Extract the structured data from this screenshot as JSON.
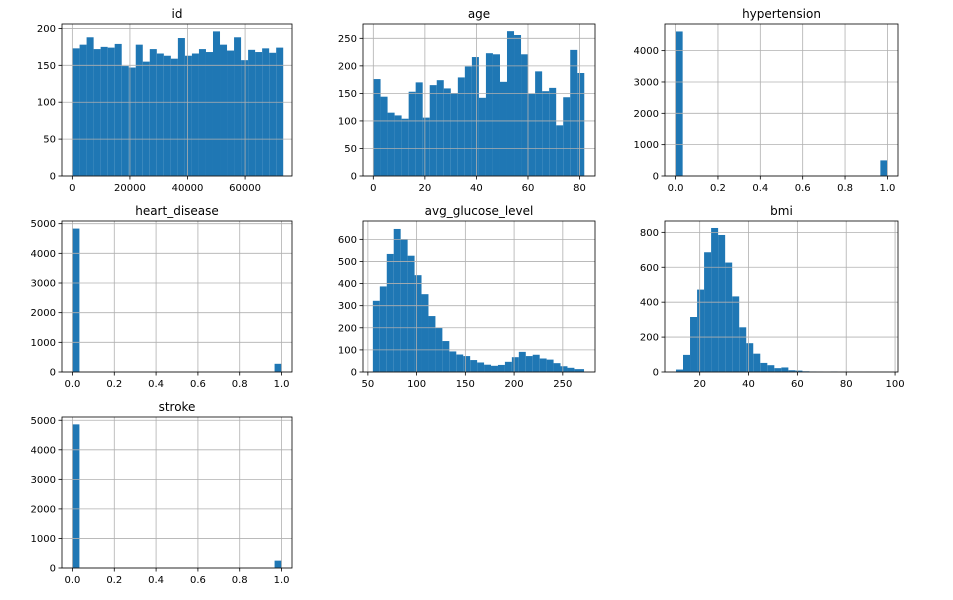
{
  "chart_data": [
    {
      "type": "bar",
      "title": "id",
      "xlim": [
        -3600,
        76300
      ],
      "ylim": [
        0,
        206
      ],
      "xticks": [
        0,
        20000,
        40000,
        60000
      ],
      "xtick_labels": [
        "0",
        "20000",
        "40000",
        "60000"
      ],
      "yticks": [
        0,
        50,
        100,
        150,
        200
      ],
      "ytick_labels": [
        "0",
        "50",
        "100",
        "150",
        "200"
      ],
      "grid": true,
      "color": "#1f77b4",
      "bin_edges": [
        67,
        2506,
        4946,
        7385,
        9824,
        12263,
        14703,
        17142,
        19581,
        22021,
        24460,
        26899,
        29338,
        31778,
        34217,
        36656,
        39095,
        41535,
        43974,
        46413,
        48853,
        51292,
        53731,
        56170,
        58610,
        61049,
        63488,
        65927,
        68367,
        70806,
        73245
      ],
      "values": [
        173,
        178,
        188,
        172,
        175,
        174,
        179,
        149,
        147,
        178,
        155,
        172,
        166,
        163,
        159,
        187,
        163,
        166,
        172,
        168,
        196,
        178,
        170,
        188,
        157,
        171,
        168,
        173,
        167,
        174
      ]
    },
    {
      "type": "bar",
      "title": "age",
      "xlim": [
        -4,
        86
      ],
      "ylim": [
        0,
        276
      ],
      "xticks": [
        0,
        20,
        40,
        60,
        80
      ],
      "xtick_labels": [
        "0",
        "20",
        "40",
        "60",
        "80"
      ],
      "yticks": [
        0,
        50,
        100,
        150,
        200,
        250
      ],
      "ytick_labels": [
        "0",
        "50",
        "100",
        "150",
        "200",
        "250"
      ],
      "grid": true,
      "color": "#1f77b4",
      "bin_edges": [
        0.08,
        2.81,
        5.53,
        8.26,
        10.98,
        13.71,
        16.43,
        19.16,
        21.88,
        24.61,
        27.33,
        30.06,
        32.79,
        35.51,
        38.24,
        40.96,
        43.69,
        46.41,
        49.14,
        51.86,
        54.59,
        57.31,
        60.04,
        62.77,
        65.49,
        68.22,
        70.94,
        73.67,
        76.39,
        79.12,
        81.84
      ],
      "values": [
        176,
        144,
        115,
        110,
        104,
        153,
        170,
        106,
        165,
        174,
        159,
        150,
        179,
        199,
        216,
        142,
        223,
        221,
        171,
        263,
        256,
        221,
        149,
        190,
        154,
        160,
        92,
        143,
        229,
        187
      ]
    },
    {
      "type": "bar",
      "title": "hypertension",
      "xlim": [
        -0.05,
        1.05
      ],
      "ylim": [
        0,
        4850
      ],
      "xticks": [
        0.0,
        0.2,
        0.4,
        0.6,
        0.8,
        1.0
      ],
      "xtick_labels": [
        "0.0",
        "0.2",
        "0.4",
        "0.6",
        "0.8",
        "1.0"
      ],
      "yticks": [
        0,
        1000,
        2000,
        3000,
        4000
      ],
      "ytick_labels": [
        "0",
        "1000",
        "2000",
        "3000",
        "4000"
      ],
      "grid": true,
      "color": "#1f77b4",
      "bin_edges": [
        0.0,
        0.0333,
        0.0667,
        0.1,
        0.1333,
        0.1667,
        0.2,
        0.2333,
        0.2667,
        0.3,
        0.3333,
        0.3667,
        0.4,
        0.4333,
        0.4667,
        0.5,
        0.5333,
        0.5667,
        0.6,
        0.6333,
        0.6667,
        0.7,
        0.7333,
        0.7667,
        0.8,
        0.8333,
        0.8667,
        0.9,
        0.9333,
        0.9667,
        1.0
      ],
      "values": [
        4612,
        0,
        0,
        0,
        0,
        0,
        0,
        0,
        0,
        0,
        0,
        0,
        0,
        0,
        0,
        0,
        0,
        0,
        0,
        0,
        0,
        0,
        0,
        0,
        0,
        0,
        0,
        0,
        0,
        498
      ]
    },
    {
      "type": "bar",
      "title": "heart_disease",
      "xlim": [
        -0.05,
        1.05
      ],
      "ylim": [
        0,
        5090
      ],
      "xticks": [
        0.0,
        0.2,
        0.4,
        0.6,
        0.8,
        1.0
      ],
      "xtick_labels": [
        "0.0",
        "0.2",
        "0.4",
        "0.6",
        "0.8",
        "1.0"
      ],
      "yticks": [
        0,
        1000,
        2000,
        3000,
        4000,
        5000
      ],
      "ytick_labels": [
        "0",
        "1000",
        "2000",
        "3000",
        "4000",
        "5000"
      ],
      "grid": true,
      "color": "#1f77b4",
      "bin_edges": [
        0.0,
        0.0333,
        0.0667,
        0.1,
        0.1333,
        0.1667,
        0.2,
        0.2333,
        0.2667,
        0.3,
        0.3333,
        0.3667,
        0.4,
        0.4333,
        0.4667,
        0.5,
        0.5333,
        0.5667,
        0.6,
        0.6333,
        0.6667,
        0.7,
        0.7333,
        0.7667,
        0.8,
        0.8333,
        0.8667,
        0.9,
        0.9333,
        0.9667,
        1.0
      ],
      "values": [
        4834,
        0,
        0,
        0,
        0,
        0,
        0,
        0,
        0,
        0,
        0,
        0,
        0,
        0,
        0,
        0,
        0,
        0,
        0,
        0,
        0,
        0,
        0,
        0,
        0,
        0,
        0,
        0,
        0,
        276
      ]
    },
    {
      "type": "bar",
      "title": "avg_glucose_level",
      "xlim": [
        45,
        283
      ],
      "ylim": [
        0,
        683
      ],
      "xticks": [
        50,
        100,
        150,
        200,
        250
      ],
      "xtick_labels": [
        "50",
        "100",
        "150",
        "200",
        "250"
      ],
      "yticks": [
        0,
        100,
        200,
        300,
        400,
        500,
        600
      ],
      "ytick_labels": [
        "0",
        "100",
        "200",
        "300",
        "400",
        "500",
        "600"
      ],
      "grid": true,
      "color": "#1f77b4",
      "bin_edges": [
        55.12,
        62.25,
        69.38,
        76.51,
        83.64,
        90.77,
        97.9,
        105.03,
        112.16,
        119.29,
        126.42,
        133.55,
        140.68,
        147.81,
        154.94,
        162.07,
        169.2,
        176.33,
        183.46,
        190.59,
        197.72,
        204.85,
        211.98,
        219.11,
        226.24,
        233.37,
        240.5,
        247.63,
        254.76,
        261.89,
        271.74
      ],
      "values": [
        322,
        387,
        534,
        647,
        601,
        526,
        438,
        352,
        253,
        199,
        140,
        93,
        79,
        72,
        54,
        43,
        33,
        28,
        32,
        46,
        67,
        91,
        72,
        78,
        61,
        56,
        40,
        26,
        19,
        13
      ]
    },
    {
      "type": "bar",
      "title": "bmi",
      "xlim": [
        5.8,
        101.2
      ],
      "ylim": [
        0,
        865
      ],
      "xticks": [
        20,
        40,
        60,
        80,
        100
      ],
      "xtick_labels": [
        "20",
        "40",
        "60",
        "80",
        "100"
      ],
      "yticks": [
        0,
        200,
        400,
        600,
        800
      ],
      "ytick_labels": [
        "0",
        "200",
        "400",
        "600",
        "800"
      ],
      "grid": true,
      "color": "#1f77b4",
      "bin_edges": [
        10.3,
        13.17,
        16.05,
        18.93,
        21.8,
        24.68,
        27.55,
        30.43,
        33.31,
        36.18,
        39.06,
        41.93,
        44.81,
        47.69,
        50.56,
        53.44,
        56.31,
        59.19,
        62.07,
        64.94,
        67.82,
        70.69,
        73.57,
        76.45,
        79.32,
        82.2,
        85.07,
        87.95,
        90.83,
        93.7,
        97.6
      ],
      "values": [
        14,
        98,
        315,
        472,
        686,
        825,
        785,
        627,
        433,
        256,
        165,
        105,
        52,
        39,
        22,
        26,
        10,
        8,
        4,
        3,
        2,
        0,
        3,
        0,
        1,
        0,
        0,
        1,
        0,
        1
      ]
    },
    {
      "type": "bar",
      "title": "stroke",
      "xlim": [
        -0.05,
        1.05
      ],
      "ylim": [
        0,
        5110
      ],
      "xticks": [
        0.0,
        0.2,
        0.4,
        0.6,
        0.8,
        1.0
      ],
      "xtick_labels": [
        "0.0",
        "0.2",
        "0.4",
        "0.6",
        "0.8",
        "1.0"
      ],
      "yticks": [
        0,
        1000,
        2000,
        3000,
        4000,
        5000
      ],
      "ytick_labels": [
        "0",
        "1000",
        "2000",
        "3000",
        "4000",
        "5000"
      ],
      "grid": true,
      "color": "#1f77b4",
      "bin_edges": [
        0.0,
        0.0333,
        0.0667,
        0.1,
        0.1333,
        0.1667,
        0.2,
        0.2333,
        0.2667,
        0.3,
        0.3333,
        0.3667,
        0.4,
        0.4333,
        0.4667,
        0.5,
        0.5333,
        0.5667,
        0.6,
        0.6333,
        0.6667,
        0.7,
        0.7333,
        0.7667,
        0.8,
        0.8333,
        0.8667,
        0.9,
        0.9333,
        0.9667,
        1.0
      ],
      "values": [
        4861,
        0,
        0,
        0,
        0,
        0,
        0,
        0,
        0,
        0,
        0,
        0,
        0,
        0,
        0,
        0,
        0,
        0,
        0,
        0,
        0,
        0,
        0,
        0,
        0,
        0,
        0,
        0,
        0,
        249
      ]
    }
  ]
}
